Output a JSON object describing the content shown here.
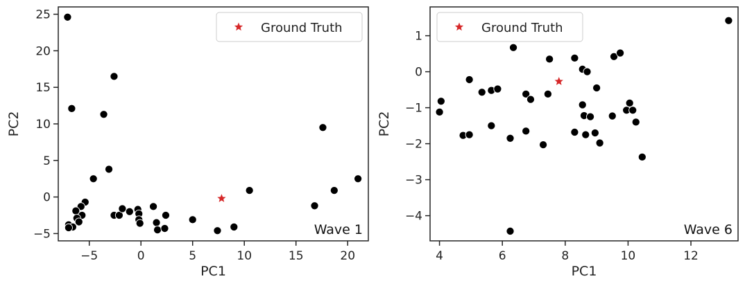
{
  "chart_data": [
    {
      "type": "scatter",
      "xlabel": "PC1",
      "ylabel": "PC2",
      "xlim": [
        -8,
        22
      ],
      "ylim": [
        -6,
        26
      ],
      "xticks": [
        -5,
        0,
        5,
        10,
        15,
        20
      ],
      "yticks": [
        -5,
        0,
        5,
        10,
        15,
        20,
        25
      ],
      "annotation": "Wave 1",
      "legend": {
        "placement": "top-right",
        "entries": [
          {
            "label": "Ground Truth",
            "color": "#d62728",
            "marker": "star"
          }
        ]
      },
      "ground_truth": {
        "x": 7.8,
        "y": -0.2
      },
      "points": [
        {
          "x": -7.1,
          "y": 24.6
        },
        {
          "x": -2.6,
          "y": 16.5
        },
        {
          "x": -6.7,
          "y": 12.1
        },
        {
          "x": -3.6,
          "y": 11.3
        },
        {
          "x": -3.1,
          "y": 3.8
        },
        {
          "x": -4.6,
          "y": 2.5
        },
        {
          "x": -5.4,
          "y": -0.7
        },
        {
          "x": -5.8,
          "y": -1.3
        },
        {
          "x": -6.3,
          "y": -1.9
        },
        {
          "x": -5.7,
          "y": -2.5
        },
        {
          "x": -6.2,
          "y": -2.9
        },
        {
          "x": -6.0,
          "y": -3.4
        },
        {
          "x": -7.0,
          "y": -3.8
        },
        {
          "x": -6.6,
          "y": -4.1
        },
        {
          "x": -7.0,
          "y": -4.2
        },
        {
          "x": -2.6,
          "y": -2.5
        },
        {
          "x": -2.1,
          "y": -2.5
        },
        {
          "x": -1.8,
          "y": -1.6
        },
        {
          "x": -1.1,
          "y": -2.0
        },
        {
          "x": -0.3,
          "y": -1.7
        },
        {
          "x": -0.2,
          "y": -2.3
        },
        {
          "x": -0.2,
          "y": -3.1
        },
        {
          "x": -0.1,
          "y": -3.6
        },
        {
          "x": 1.2,
          "y": -1.3
        },
        {
          "x": 1.5,
          "y": -3.5
        },
        {
          "x": 1.6,
          "y": -4.5
        },
        {
          "x": 2.4,
          "y": -2.5
        },
        {
          "x": 2.3,
          "y": -4.3
        },
        {
          "x": 5.0,
          "y": -3.1
        },
        {
          "x": 7.4,
          "y": -4.6
        },
        {
          "x": 9.0,
          "y": -4.1
        },
        {
          "x": 10.5,
          "y": 0.9
        },
        {
          "x": 16.8,
          "y": -1.2
        },
        {
          "x": 17.6,
          "y": 9.5
        },
        {
          "x": 18.7,
          "y": 0.9
        },
        {
          "x": 21.0,
          "y": 2.5
        }
      ]
    },
    {
      "type": "scatter",
      "xlabel": "PC1",
      "ylabel": "PC2",
      "xlim": [
        3.7,
        13.5
      ],
      "ylim": [
        -4.7,
        1.8
      ],
      "xticks": [
        4,
        6,
        8,
        10,
        12
      ],
      "yticks": [
        -4,
        -3,
        -2,
        -1,
        0,
        1
      ],
      "annotation": "Wave 6",
      "legend": {
        "placement": "top-left",
        "entries": [
          {
            "label": "Ground Truth",
            "color": "#d62728",
            "marker": "star"
          }
        ]
      },
      "ground_truth": {
        "x": 7.8,
        "y": -0.27
      },
      "points": [
        {
          "x": 4.05,
          "y": -0.82
        },
        {
          "x": 4.0,
          "y": -1.12
        },
        {
          "x": 4.95,
          "y": -0.22
        },
        {
          "x": 4.75,
          "y": -1.77
        },
        {
          "x": 4.95,
          "y": -1.75
        },
        {
          "x": 5.35,
          "y": -0.57
        },
        {
          "x": 5.65,
          "y": -0.52
        },
        {
          "x": 5.85,
          "y": -0.48
        },
        {
          "x": 5.65,
          "y": -1.5
        },
        {
          "x": 6.25,
          "y": -1.85
        },
        {
          "x": 6.25,
          "y": -4.43
        },
        {
          "x": 6.35,
          "y": 0.67
        },
        {
          "x": 6.75,
          "y": -0.62
        },
        {
          "x": 6.9,
          "y": -0.77
        },
        {
          "x": 6.75,
          "y": -1.65
        },
        {
          "x": 7.3,
          "y": -2.03
        },
        {
          "x": 7.45,
          "y": -0.62
        },
        {
          "x": 7.5,
          "y": 0.35
        },
        {
          "x": 8.3,
          "y": 0.38
        },
        {
          "x": 8.55,
          "y": 0.07
        },
        {
          "x": 8.7,
          "y": 0.0
        },
        {
          "x": 8.55,
          "y": -0.92
        },
        {
          "x": 8.6,
          "y": -1.22
        },
        {
          "x": 8.8,
          "y": -1.25
        },
        {
          "x": 8.3,
          "y": -1.68
        },
        {
          "x": 8.65,
          "y": -1.75
        },
        {
          "x": 8.95,
          "y": -1.7
        },
        {
          "x": 9.0,
          "y": -0.45
        },
        {
          "x": 9.1,
          "y": -1.98
        },
        {
          "x": 9.55,
          "y": 0.42
        },
        {
          "x": 9.75,
          "y": 0.52
        },
        {
          "x": 9.5,
          "y": -1.23
        },
        {
          "x": 9.95,
          "y": -1.07
        },
        {
          "x": 10.05,
          "y": -0.87
        },
        {
          "x": 10.15,
          "y": -1.07
        },
        {
          "x": 10.25,
          "y": -1.4
        },
        {
          "x": 10.45,
          "y": -2.37
        },
        {
          "x": 13.2,
          "y": 1.42
        }
      ]
    }
  ]
}
